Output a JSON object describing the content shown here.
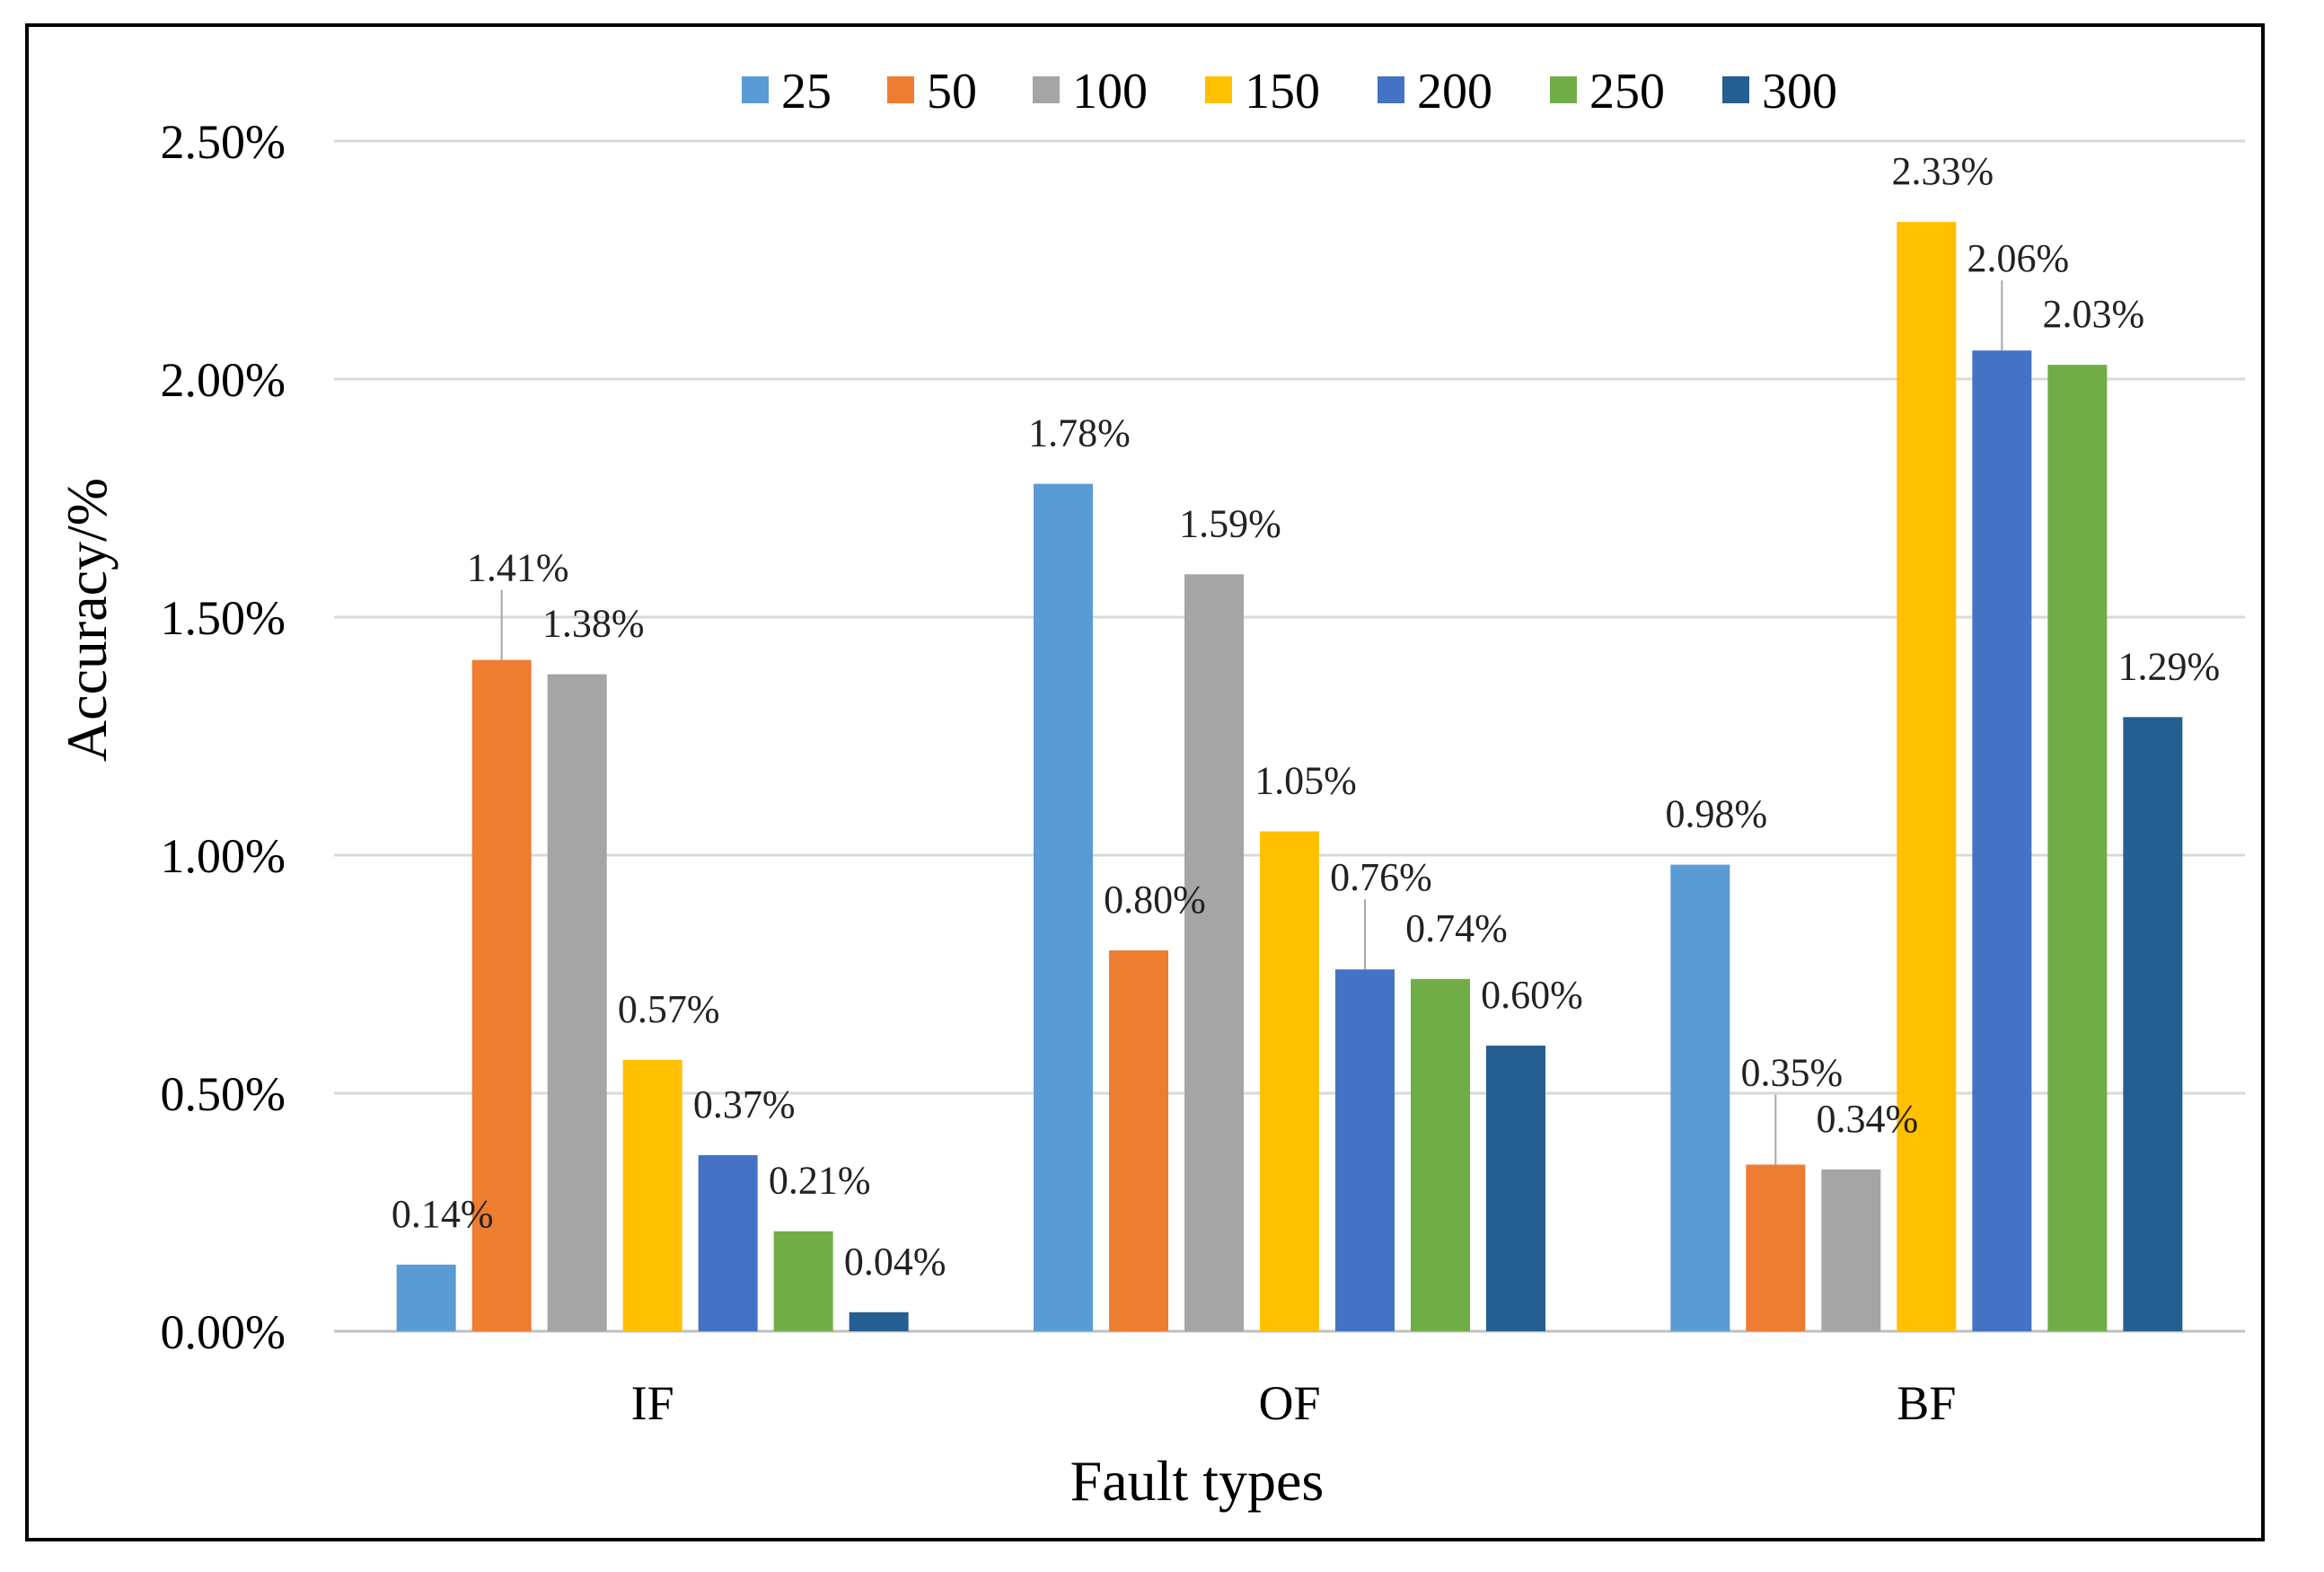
{
  "chart_data": {
    "type": "bar",
    "title": "",
    "xlabel": "Fault types",
    "ylabel": "Accuracy/%",
    "ylim": [
      0,
      2.5
    ],
    "yticks": [
      0,
      0.5,
      1.0,
      1.5,
      2.0,
      2.5
    ],
    "ytick_labels": [
      "0.00%",
      "0.50%",
      "1.00%",
      "1.50%",
      "2.00%",
      "2.50%"
    ],
    "categories": [
      "IF",
      "OF",
      "BF"
    ],
    "legend_position": "top",
    "grid": true,
    "series": [
      {
        "name": "25",
        "color": "#5B9BD5",
        "values": [
          0.14,
          1.78,
          0.98
        ],
        "labels": [
          "0.14%",
          "1.78%",
          "0.98%"
        ]
      },
      {
        "name": "50",
        "color": "#ED7D31",
        "values": [
          1.41,
          0.8,
          0.35
        ],
        "labels": [
          "1.41%",
          "0.80%",
          "0.35%"
        ]
      },
      {
        "name": "100",
        "color": "#A5A5A5",
        "values": [
          1.38,
          1.59,
          0.34
        ],
        "labels": [
          "1.38%",
          "1.59%",
          "0.34%"
        ]
      },
      {
        "name": "150",
        "color": "#FFC000",
        "values": [
          0.57,
          1.05,
          2.33
        ],
        "labels": [
          "0.57%",
          "1.05%",
          "2.33%"
        ]
      },
      {
        "name": "200",
        "color": "#4472C4",
        "values": [
          0.37,
          0.76,
          2.06
        ],
        "labels": [
          "0.37%",
          "0.76%",
          "2.06%"
        ]
      },
      {
        "name": "250",
        "color": "#70AD47",
        "values": [
          0.21,
          0.74,
          2.03
        ],
        "labels": [
          "0.21%",
          "0.74%",
          "2.03%"
        ]
      },
      {
        "name": "300",
        "color": "#255E91",
        "values": [
          0.04,
          0.6,
          1.29
        ],
        "labels": [
          "0.04%",
          "0.60%",
          "1.29%"
        ]
      }
    ]
  }
}
